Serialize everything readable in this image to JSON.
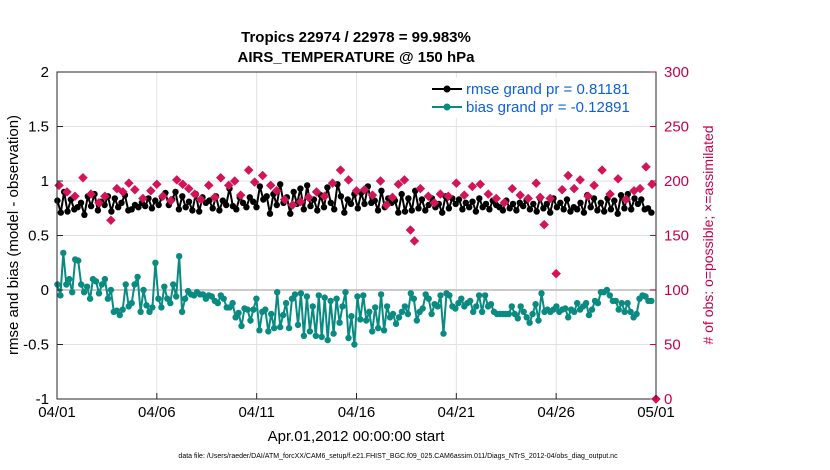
{
  "chart_data": {
    "type": "line",
    "title_line1": "Tropics 22974 / 22978 = 99.983%",
    "title_line2": "AIRS_TEMPERATURE @ 150 hPa",
    "xlabel": "Apr.01,2012 00:00:00 start",
    "ylabel_left": "rmse and bias (model - observation)",
    "ylabel_right": "# of obs: o=possible; ×=assimilated",
    "ylim_left": [
      -1,
      2
    ],
    "ylim_right": [
      0,
      300
    ],
    "xlim_days": [
      0,
      30
    ],
    "x_ticks": [
      {
        "day": 0,
        "label": "04/01"
      },
      {
        "day": 5,
        "label": "04/06"
      },
      {
        "day": 10,
        "label": "04/11"
      },
      {
        "day": 15,
        "label": "04/16"
      },
      {
        "day": 20,
        "label": "04/21"
      },
      {
        "day": 25,
        "label": "04/26"
      },
      {
        "day": 30,
        "label": "05/01"
      }
    ],
    "y_ticks_left": [
      "-1",
      "-0.5",
      "0",
      "0.5",
      "1",
      "1.5",
      "2"
    ],
    "y_ticks_right": [
      "0",
      "50",
      "100",
      "150",
      "200",
      "250",
      "300"
    ],
    "legend": [
      {
        "label": "rmse grand pr = 0.81181",
        "color": "#000000"
      },
      {
        "label": "bias grand pr = -0.12891",
        "color": "#0a8b82"
      }
    ],
    "colors": {
      "rmse": "#000000",
      "bias": "#0a8b82",
      "obs": "#d41459",
      "zero_line": "#b8b8b8",
      "grid": "#e2e2e2"
    },
    "rmse": [
      0.82,
      0.71,
      0.9,
      0.72,
      0.83,
      0.74,
      0.76,
      0.8,
      0.69,
      0.86,
      0.77,
      0.88,
      0.73,
      0.81,
      0.78,
      0.86,
      0.72,
      0.84,
      0.76,
      0.8,
      0.87,
      0.73,
      0.74,
      0.78,
      0.76,
      0.8,
      0.77,
      0.84,
      0.75,
      0.82,
      0.78,
      0.85,
      0.89,
      0.78,
      0.83,
      0.9,
      0.74,
      0.86,
      0.76,
      0.81,
      0.73,
      0.88,
      0.72,
      0.85,
      0.8,
      0.82,
      0.75,
      0.86,
      0.73,
      0.82,
      0.78,
      0.93,
      0.77,
      0.74,
      0.85,
      0.8,
      0.76,
      0.85,
      0.81,
      0.76,
      0.95,
      0.83,
      0.86,
      0.7,
      0.88,
      0.78,
      0.97,
      0.8,
      0.85,
      0.7,
      0.9,
      0.79,
      0.93,
      0.74,
      0.96,
      0.77,
      0.83,
      0.73,
      0.87,
      0.76,
      0.94,
      0.8,
      0.74,
      0.97,
      0.86,
      0.71,
      0.83,
      0.79,
      0.88,
      0.75,
      0.89,
      0.79,
      0.95,
      0.8,
      0.82,
      0.73,
      0.91,
      0.76,
      0.84,
      0.8,
      0.82,
      0.71,
      0.88,
      0.72,
      0.84,
      0.73,
      0.91,
      0.75,
      0.83,
      0.73,
      0.78,
      0.84,
      0.76,
      0.79,
      0.71,
      0.86,
      0.75,
      0.84,
      0.79,
      0.83,
      0.74,
      0.8,
      0.76,
      0.81,
      0.72,
      0.84,
      0.76,
      0.79,
      0.74,
      0.82,
      0.78,
      0.76,
      0.73,
      0.82,
      0.75,
      0.79,
      0.73,
      0.8,
      0.77,
      0.82,
      0.74,
      0.79,
      0.72,
      0.84,
      0.75,
      0.79,
      0.71,
      0.84,
      0.76,
      0.8,
      0.74,
      0.83,
      0.72,
      0.76,
      0.74,
      0.8,
      0.71,
      0.87,
      0.76,
      0.84,
      0.73,
      0.8,
      0.72,
      0.84,
      0.74,
      0.82,
      0.7,
      0.87,
      0.75,
      0.88,
      0.74,
      0.84,
      0.79,
      0.83,
      0.74,
      0.75,
      0.71
    ],
    "bias": [
      0.05,
      -0.05,
      0.34,
      0.05,
      0.1,
      -0.02,
      0.28,
      0.27,
      0.05,
      -0.02,
      0.03,
      -0.08,
      0.1,
      0.08,
      -0.03,
      0.05,
      0.1,
      -0.08,
      0.0,
      -0.2,
      -0.19,
      -0.23,
      -0.18,
      0.05,
      -0.15,
      -0.12,
      0.05,
      0.12,
      -0.2,
      0.0,
      -0.14,
      -0.2,
      -0.16,
      0.25,
      -0.08,
      -0.16,
      0.03,
      -0.08,
      -0.12,
      0.05,
      -0.06,
      0.31,
      -0.2,
      -0.08,
      -0.01,
      -0.04,
      -0.05,
      -0.02,
      -0.04,
      -0.04,
      -0.08,
      -0.05,
      -0.06,
      -0.1,
      -0.12,
      -0.05,
      -0.08,
      -0.16,
      -0.16,
      -0.12,
      -0.25,
      -0.21,
      -0.33,
      -0.17,
      -0.18,
      -0.28,
      -0.18,
      -0.08,
      -0.37,
      -0.2,
      -0.18,
      -0.38,
      -0.22,
      -0.35,
      -0.02,
      -0.34,
      -0.23,
      -0.12,
      -0.35,
      -0.08,
      -0.04,
      -0.32,
      -0.03,
      -0.42,
      -0.06,
      -0.38,
      -0.15,
      -0.42,
      -0.05,
      -0.43,
      -0.07,
      -0.46,
      -0.1,
      -0.4,
      -0.08,
      -0.3,
      -0.15,
      -0.02,
      -0.44,
      -0.24,
      -0.5,
      -0.06,
      -0.27,
      -0.05,
      -0.28,
      -0.2,
      -0.38,
      -0.16,
      -0.35,
      -0.04,
      -0.37,
      -0.15,
      -0.25,
      -0.22,
      -0.31,
      -0.25,
      -0.2,
      -0.15,
      -0.22,
      -0.03,
      -0.08,
      -0.28,
      -0.2,
      -0.17,
      -0.04,
      -0.08,
      -0.22,
      -0.13,
      -0.15,
      -0.05,
      -0.4,
      -0.03,
      -0.05,
      -0.15,
      -0.17,
      -0.12,
      -0.08,
      -0.15,
      -0.12,
      -0.1,
      -0.2,
      -0.15,
      -0.05,
      -0.2,
      -0.05,
      -0.15,
      -0.13,
      -0.2,
      -0.22,
      -0.22,
      -0.22,
      -0.22,
      -0.22,
      -0.15,
      -0.22,
      -0.26,
      -0.15,
      -0.2,
      -0.25,
      -0.3,
      -0.22,
      -0.13,
      -0.28,
      -0.03,
      -0.2,
      -0.18,
      -0.2,
      -0.18,
      -0.15,
      -0.2,
      -0.18,
      -0.17,
      -0.25,
      -0.18,
      -0.2,
      -0.12,
      -0.18,
      -0.15,
      -0.12,
      -0.23,
      -0.18,
      -0.1,
      -0.12,
      -0.02,
      -0.02,
      0.0,
      -0.05,
      -0.1,
      -0.1,
      -0.18,
      -0.12,
      -0.2,
      -0.12,
      -0.2,
      -0.25,
      -0.22,
      -0.08,
      -0.05,
      -0.06,
      -0.1,
      -0.1
    ],
    "obs_assimilated": [
      [
        0.1,
        196
      ],
      [
        0.5,
        190
      ],
      [
        0.9,
        186
      ],
      [
        1.3,
        203
      ],
      [
        1.7,
        188
      ],
      [
        2.1,
        180
      ],
      [
        2.4,
        186
      ],
      [
        2.7,
        164
      ],
      [
        3.0,
        193
      ],
      [
        3.3,
        190
      ],
      [
        3.6,
        198
      ],
      [
        3.9,
        192
      ],
      [
        4.3,
        184
      ],
      [
        4.7,
        191
      ],
      [
        5.0,
        197
      ],
      [
        5.3,
        186
      ],
      [
        5.7,
        182
      ],
      [
        6.0,
        201
      ],
      [
        6.3,
        197
      ],
      [
        6.6,
        193
      ],
      [
        6.9,
        188
      ],
      [
        7.2,
        183
      ],
      [
        7.6,
        196
      ],
      [
        7.9,
        185
      ],
      [
        8.2,
        203
      ],
      [
        8.6,
        196
      ],
      [
        8.9,
        200
      ],
      [
        9.2,
        187
      ],
      [
        9.6,
        210
      ],
      [
        9.9,
        199
      ],
      [
        10.3,
        205
      ],
      [
        10.7,
        196
      ],
      [
        11.0,
        191
      ],
      [
        11.4,
        183
      ],
      [
        11.8,
        178
      ],
      [
        12.2,
        181
      ],
      [
        12.6,
        185
      ],
      [
        13.0,
        190
      ],
      [
        13.4,
        186
      ],
      [
        13.8,
        198
      ],
      [
        14.2,
        210
      ],
      [
        14.6,
        201
      ],
      [
        15.0,
        191
      ],
      [
        15.4,
        192
      ],
      [
        15.8,
        187
      ],
      [
        16.2,
        200
      ],
      [
        16.5,
        178
      ],
      [
        16.8,
        185
      ],
      [
        17.1,
        197
      ],
      [
        17.4,
        201
      ],
      [
        17.7,
        155
      ],
      [
        17.9,
        145
      ],
      [
        18.2,
        193
      ],
      [
        18.6,
        186
      ],
      [
        18.9,
        180
      ],
      [
        19.2,
        188
      ],
      [
        19.6,
        186
      ],
      [
        20.0,
        198
      ],
      [
        20.4,
        187
      ],
      [
        20.8,
        195
      ],
      [
        21.2,
        197
      ],
      [
        21.6,
        188
      ],
      [
        22.0,
        184
      ],
      [
        22.4,
        180
      ],
      [
        22.8,
        193
      ],
      [
        23.2,
        187
      ],
      [
        23.6,
        184
      ],
      [
        24.0,
        198
      ],
      [
        24.2,
        185
      ],
      [
        24.4,
        160
      ],
      [
        24.7,
        184
      ],
      [
        25.0,
        115
      ],
      [
        25.3,
        192
      ],
      [
        25.6,
        205
      ],
      [
        25.9,
        193
      ],
      [
        26.2,
        201
      ],
      [
        26.6,
        186
      ],
      [
        26.9,
        196
      ],
      [
        27.3,
        210
      ],
      [
        27.7,
        188
      ],
      [
        28.1,
        202
      ],
      [
        28.5,
        183
      ],
      [
        28.9,
        191
      ],
      [
        29.2,
        193
      ],
      [
        29.5,
        213
      ],
      [
        29.8,
        197
      ],
      [
        30.0,
        0
      ]
    ]
  },
  "footer_text": "data file: /Users/raeder/DAI/ATM_forcXX/CAM6_setup/f.e21.FHIST_BGC.f09_025.CAM6assim.011/Diags_NTrS_2012-04/obs_diag_output.nc"
}
